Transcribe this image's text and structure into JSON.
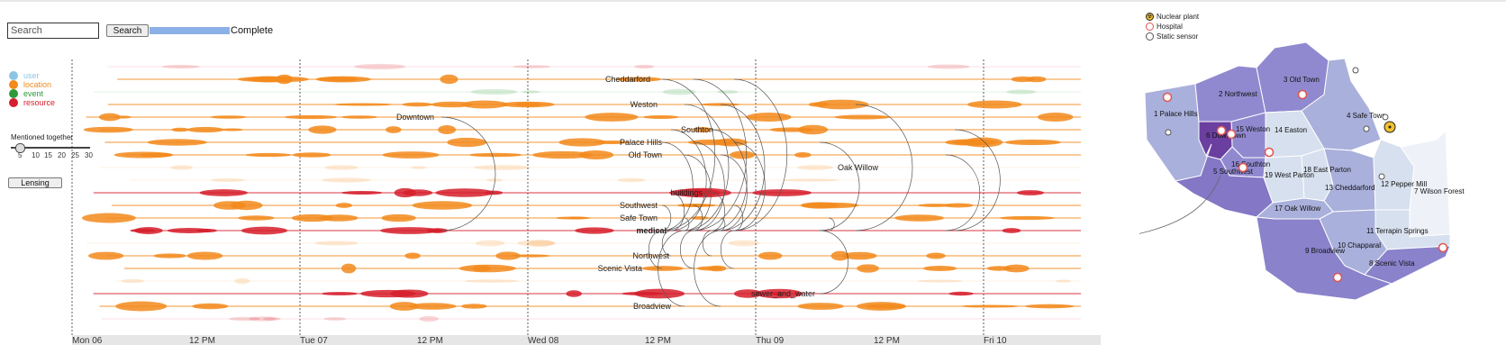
{
  "search": {
    "placeholder": "Search",
    "button_label": "Search",
    "progress": 1.0,
    "status": "Complete"
  },
  "legend": [
    {
      "label": "user",
      "color": "#8ec4e3"
    },
    {
      "label": "location",
      "color": "#f28a1c"
    },
    {
      "label": "event",
      "color": "#2e9a3a"
    },
    {
      "label": "resource",
      "color": "#d61f2c"
    }
  ],
  "mentioned_together": {
    "title": "Mentioned together",
    "ticks": [
      "5",
      "10",
      "15",
      "20",
      "25",
      "30"
    ],
    "value": 5
  },
  "lensing_label": "Lensing",
  "timeline": {
    "axis_ticks": [
      "Mon 06",
      "12 PM",
      "Tue 07",
      "12 PM",
      "Wed 08",
      "12 PM",
      "Thu 09",
      "12 PM",
      "Fri 10"
    ],
    "lanes": [
      {
        "label": "",
        "type": "resource"
      },
      {
        "label": "Cheddarford",
        "type": "location"
      },
      {
        "label": "",
        "type": "event"
      },
      {
        "label": "Weston",
        "type": "location"
      },
      {
        "label": "Downtown",
        "type": "location"
      },
      {
        "label": "Southton",
        "type": "location"
      },
      {
        "label": "Palace Hills",
        "type": "location"
      },
      {
        "label": "Old Town",
        "type": "location"
      },
      {
        "label": "",
        "type": "location"
      },
      {
        "label": "",
        "type": "location"
      },
      {
        "label": "buildings",
        "type": "resource"
      },
      {
        "label": "Southwest",
        "type": "location"
      },
      {
        "label": "Safe Town",
        "type": "location"
      },
      {
        "label": "medical",
        "type": "resource"
      },
      {
        "label": "",
        "type": "location"
      },
      {
        "label": "Northwest",
        "type": "location"
      },
      {
        "label": "Scenic Vista",
        "type": "location"
      },
      {
        "label": "",
        "type": "location"
      },
      {
        "label": "sewer_and_water",
        "type": "resource"
      },
      {
        "label": "Broadview",
        "type": "location"
      },
      {
        "label": "",
        "type": "resource"
      }
    ],
    "extra_labels": [
      "Oak Willow"
    ]
  },
  "map": {
    "legend": [
      {
        "label": "Nuclear plant",
        "icon": "nuclear-icon"
      },
      {
        "label": "Hospital",
        "icon": "hospital-icon"
      },
      {
        "label": "Static sensor",
        "icon": "sensor-icon"
      }
    ],
    "regions": [
      {
        "label": "1 Palace Hills",
        "color": "#a9b0db"
      },
      {
        "label": "2 Northwest",
        "color": "#9189cf"
      },
      {
        "label": "3 Old Town",
        "color": "#9189cf"
      },
      {
        "label": "4 Safe Town",
        "color": "#a9b0db"
      },
      {
        "label": "5 Southwest",
        "color": "#8377c6"
      },
      {
        "label": "6 Downtown",
        "color": "#6a3f9f"
      },
      {
        "label": "7 Wilson Forest",
        "color": "#eef2f8"
      },
      {
        "label": "8 Scenic Vista",
        "color": "#8a82cb"
      },
      {
        "label": "9 Broadview",
        "color": "#8a82cb"
      },
      {
        "label": "10 Chapparal",
        "color": "#a9b0db"
      },
      {
        "label": "11 Terrapin Springs",
        "color": "#d7e0ee"
      },
      {
        "label": "12 Pepper Mill",
        "color": "#d7e0ee"
      },
      {
        "label": "13 Cheddarford",
        "color": "#a9b0db"
      },
      {
        "label": "14 Easton",
        "color": "#d7e0ee"
      },
      {
        "label": "15 Weston",
        "color": "#9189cf"
      },
      {
        "label": "16 Southton",
        "color": "#9189cf"
      },
      {
        "label": "17 Oak Willow",
        "color": "#a9b0db"
      },
      {
        "label": "18 East Parton",
        "color": "#d7e0ee"
      },
      {
        "label": "19 West Parton",
        "color": "#d7e0ee"
      }
    ]
  }
}
